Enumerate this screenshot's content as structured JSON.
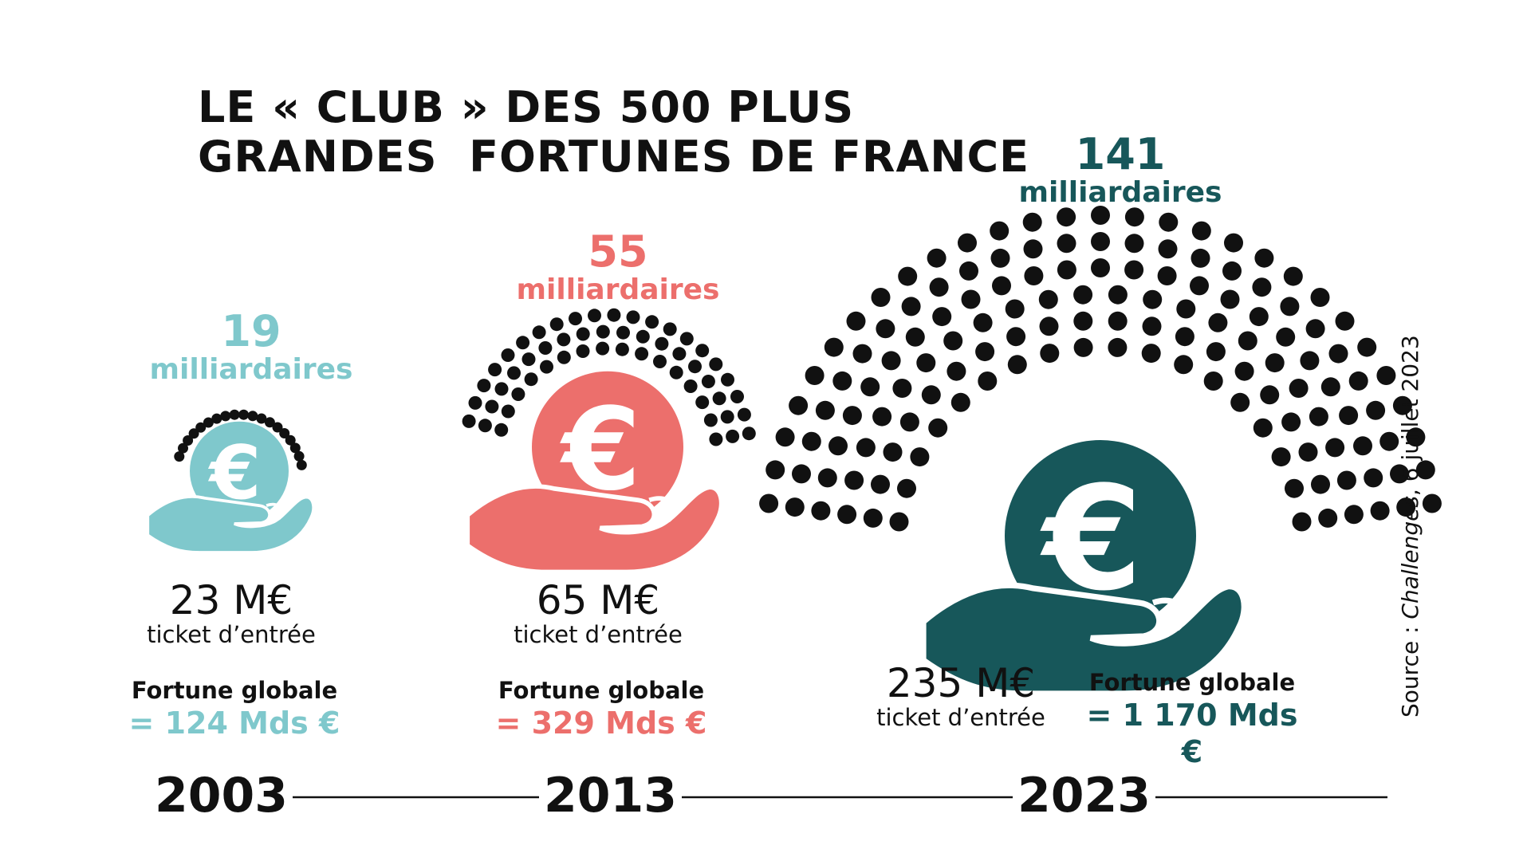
{
  "title": {
    "line1": "LE « CLUB » DES 500 PLUS",
    "line2": "GRANDES  FORTUNES DE FRANCE"
  },
  "source": {
    "prefix": "Source : ",
    "publication": "Challenges",
    "date": ", 6 juillet 2023"
  },
  "colors": {
    "y2003": "#7fc8cc",
    "y2013": "#ec6f6c",
    "y2023": "#17575a",
    "dots": "#111111",
    "line": "#111111"
  },
  "chart_data": {
    "type": "infographic",
    "title": "LE « CLUB » DES 500 PLUS GRANDES  FORTUNES DE FRANCE",
    "categories": [
      "2003",
      "2013",
      "2023"
    ],
    "series": [
      {
        "name": "milliardaires",
        "values": [
          19,
          55,
          141
        ]
      },
      {
        "name": "ticket d’entrée (M€)",
        "values": [
          23,
          65,
          235
        ]
      },
      {
        "name": "Fortune globale (Mds €)",
        "values": [
          124,
          329,
          1170
        ]
      }
    ],
    "columns": [
      {
        "year": "2003",
        "billionaires": 19,
        "count_label": "19",
        "unit_label": "milliardaires",
        "ticket": "23 M€",
        "ticket_label": "ticket d’entrée",
        "fortune_label": "Fortune globale",
        "fortune_value": "= 124 Mds €",
        "color": "#7fc8cc"
      },
      {
        "year": "2013",
        "billionaires": 55,
        "count_label": "55",
        "unit_label": "milliardaires",
        "ticket": "65 M€",
        "ticket_label": "ticket d’entrée",
        "fortune_label": "Fortune globale",
        "fortune_value": "= 329 Mds €",
        "color": "#ec6f6c"
      },
      {
        "year": "2023",
        "billionaires": 141,
        "count_label": "141",
        "unit_label": "milliardaires",
        "ticket": "235 M€",
        "ticket_label": "ticket d’entrée",
        "fortune_label": "Fortune globale",
        "fortune_value": "= 1 170 Mds €",
        "color": "#17575a"
      }
    ],
    "coin_icon": "euro-coin-in-hand-icon",
    "dot_icon": "billionaire-dot"
  }
}
